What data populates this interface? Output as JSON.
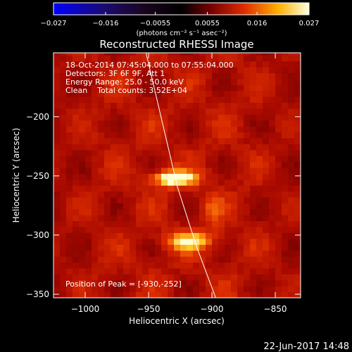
{
  "chart_data": {
    "type": "heatmap",
    "title": "Reconstructed RHESSI Image",
    "xlabel": "Heliocentric X (arcsec)",
    "ylabel": "Heliocentric Y (arcsec)",
    "xlim": [
      -1025,
      -830
    ],
    "ylim": [
      -353,
      -146
    ],
    "x_ticks": [
      -1000,
      -950,
      -900,
      -850
    ],
    "x_tick_labels": [
      "−1000",
      "−950",
      "−900",
      "−850"
    ],
    "y_ticks": [
      -200,
      -250,
      -300,
      -350
    ],
    "y_tick_labels": [
      "−200",
      "−250",
      "−300",
      "−350"
    ],
    "colorbar": {
      "range": [
        -0.027,
        0.027
      ],
      "ticks": [
        -0.027,
        -0.016,
        -0.0055,
        0.0055,
        0.016,
        0.027
      ],
      "tick_labels": [
        "−0.027",
        "−0.016",
        "−0.0055",
        "0.0055",
        "0.016",
        "0.027"
      ],
      "units_label": "(photons cm⁻² s⁻¹ asec⁻²)"
    },
    "annotations": [
      "18-Oct-2014 07:45:04.000 to 07:55:04.000",
      "Detectors: 3F 6F 9F, Att 1",
      "Energy Range: 25.0 - 50.0 keV",
      "Clean    Total counts: 3.52E+04"
    ],
    "peak_label": "Position of Peak = [-930,-252]",
    "peak": [
      -930,
      -252
    ],
    "sources": [
      {
        "x": -930,
        "y": -252,
        "peak": 0.027
      },
      {
        "x": -918,
        "y": -305,
        "peak": 0.021
      }
    ],
    "limb_curve": [
      [
        -952,
        -146
      ],
      [
        -938,
        -210
      ],
      [
        -927,
        -260
      ],
      [
        -912,
        -310
      ],
      [
        -897,
        -353
      ]
    ]
  },
  "footer_timestamp": "22-Jun-2017 14:48",
  "colors": {
    "background": "#000000",
    "foreground": "#ffffff"
  }
}
